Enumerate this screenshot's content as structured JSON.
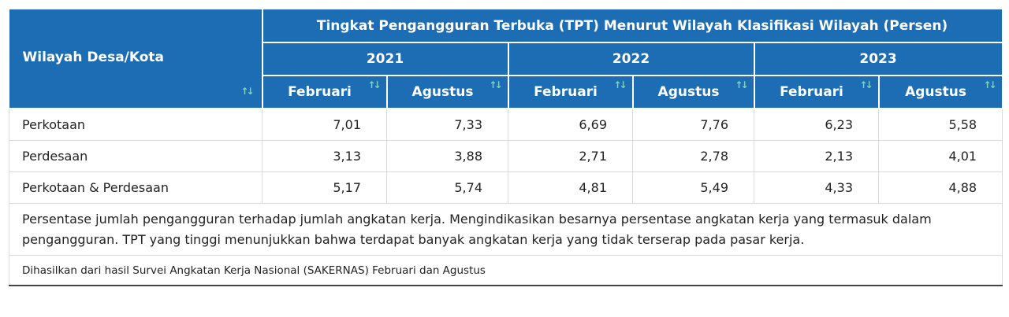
{
  "table": {
    "region_header": "Wilayah Desa/Kota",
    "main_title": "Tingkat Pengangguran Terbuka (TPT) Menurut Wilayah Klasifikasi Wilayah (Persen)",
    "years": [
      "2021",
      "2022",
      "2023"
    ],
    "sub_headers": [
      "Februari",
      "Agustus",
      "Februari",
      "Agustus",
      "Februari",
      "Agustus"
    ],
    "sort_glyph": "↑↓",
    "rows": [
      {
        "label": "Perkotaan",
        "values": [
          "7,01",
          "7,33",
          "6,69",
          "7,76",
          "6,23",
          "5,58"
        ]
      },
      {
        "label": "Perdesaan",
        "values": [
          "3,13",
          "3,88",
          "2,71",
          "2,78",
          "2,13",
          "4,01"
        ]
      },
      {
        "label": "Perkotaan & Perdesaan",
        "values": [
          "5,17",
          "5,74",
          "4,81",
          "5,49",
          "4,33",
          "4,88"
        ]
      }
    ],
    "description": "Persentase jumlah pengangguran terhadap jumlah angkatan kerja. Mengindikasikan besarnya persentase angkatan kerja yang termasuk dalam pengangguran. TPT yang tinggi menunjukkan bahwa terdapat banyak angkatan kerja yang tidak terserap pada pasar kerja.",
    "source": "Dihasilkan dari hasil Survei Angkatan Kerja Nasional (SAKERNAS) Februari dan Agustus"
  },
  "colors": {
    "header_bg": "#1d6db4",
    "header_text": "#ffffff",
    "sort_icon": "#7fd3b6",
    "border": "#d9d9d9"
  }
}
